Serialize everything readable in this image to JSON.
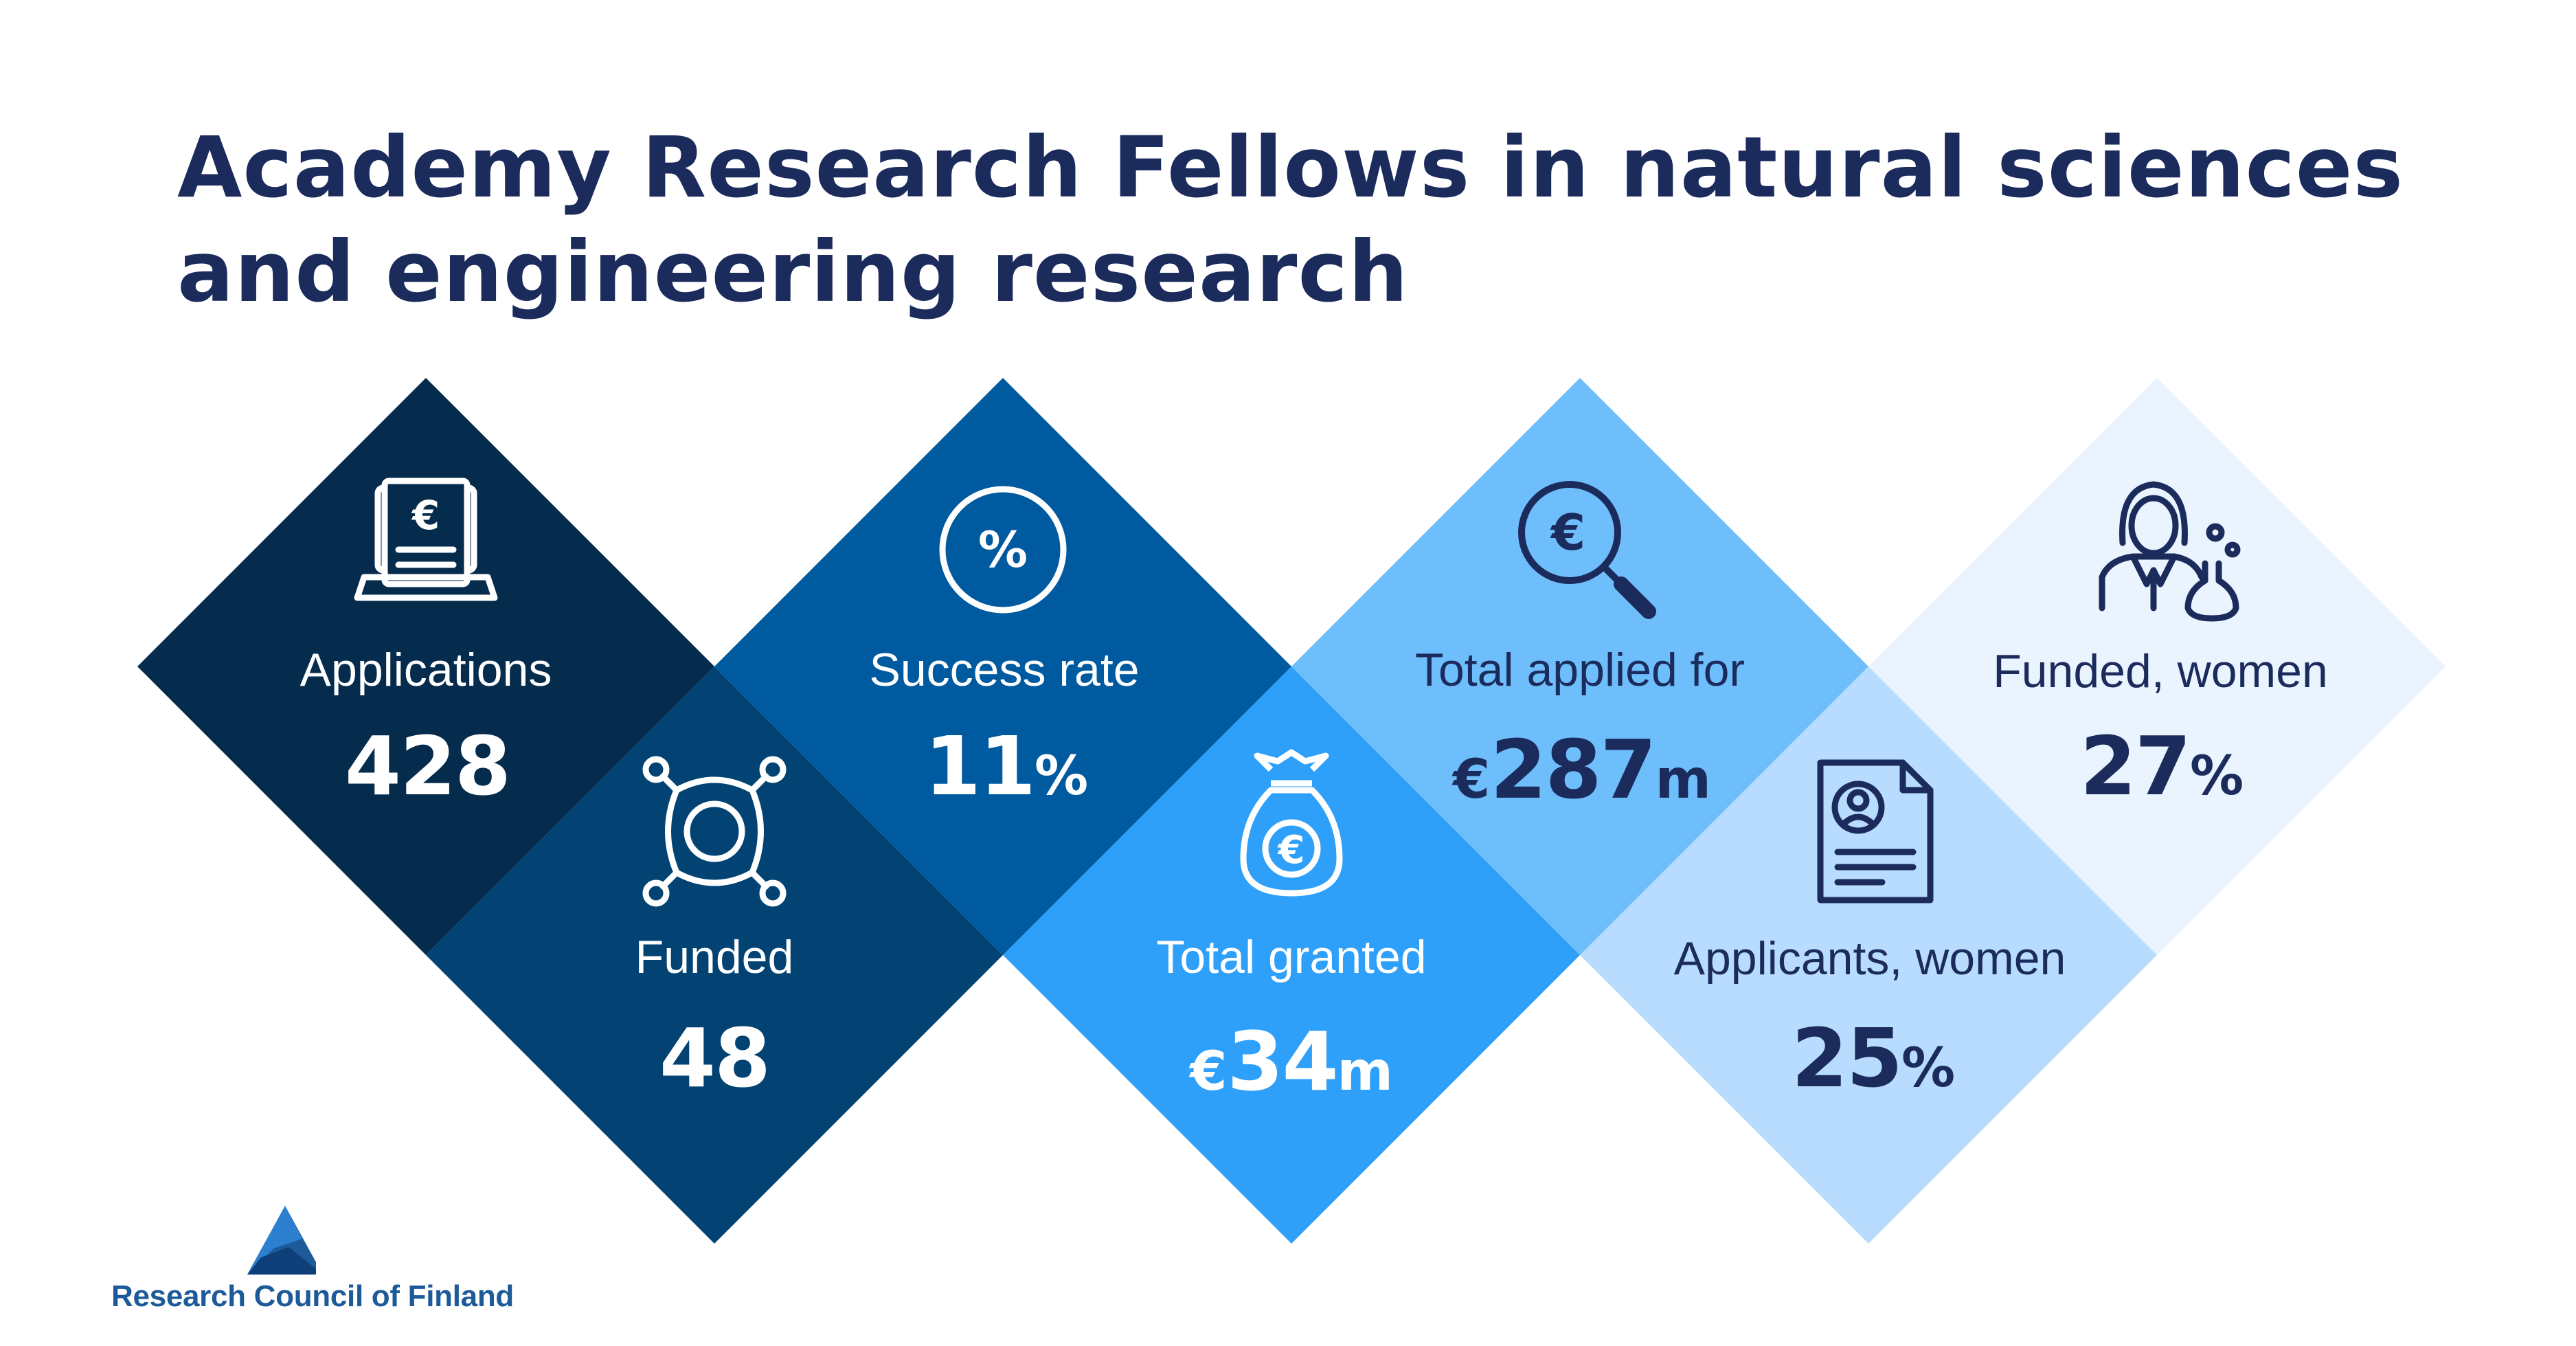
{
  "title": {
    "line1": "Academy Research Fellows in natural sciences",
    "line2": "and engineering research"
  },
  "colors": {
    "applications": "#052b4d",
    "funded": "#034373",
    "success_rate": "#005aa0",
    "total_granted": "#2ea0fa",
    "total_applied": "#6fbefc",
    "applicants_women": "#b8dcfd",
    "funded_women": "#eaf4fe",
    "text_dark": "#1b2b5c"
  },
  "stats": {
    "applications": {
      "label": "Applications",
      "value": "428",
      "icon": "laptop-euro-document-icon"
    },
    "funded": {
      "label": "Funded",
      "value": "48",
      "icon": "network-hub-icon"
    },
    "success_rate": {
      "label": "Success rate",
      "value": "11",
      "unit": "%",
      "icon": "percent-circle-icon"
    },
    "total_granted": {
      "label": "Total granted",
      "prefix": "€",
      "value": "34",
      "unit": "m",
      "icon": "money-bag-euro-icon"
    },
    "total_applied": {
      "label": "Total applied for",
      "prefix": "€",
      "value": "287",
      "unit": "m",
      "icon": "magnifier-euro-icon"
    },
    "applicants_women": {
      "label": "Applicants, women",
      "value": "25",
      "unit": "%",
      "icon": "resume-document-icon"
    },
    "funded_women": {
      "label": "Funded, women",
      "value": "27",
      "unit": "%",
      "icon": "woman-scientist-icon"
    }
  },
  "logo": {
    "text": "Research Council of Finland",
    "icon": "mountain-triangle-logo-icon"
  }
}
